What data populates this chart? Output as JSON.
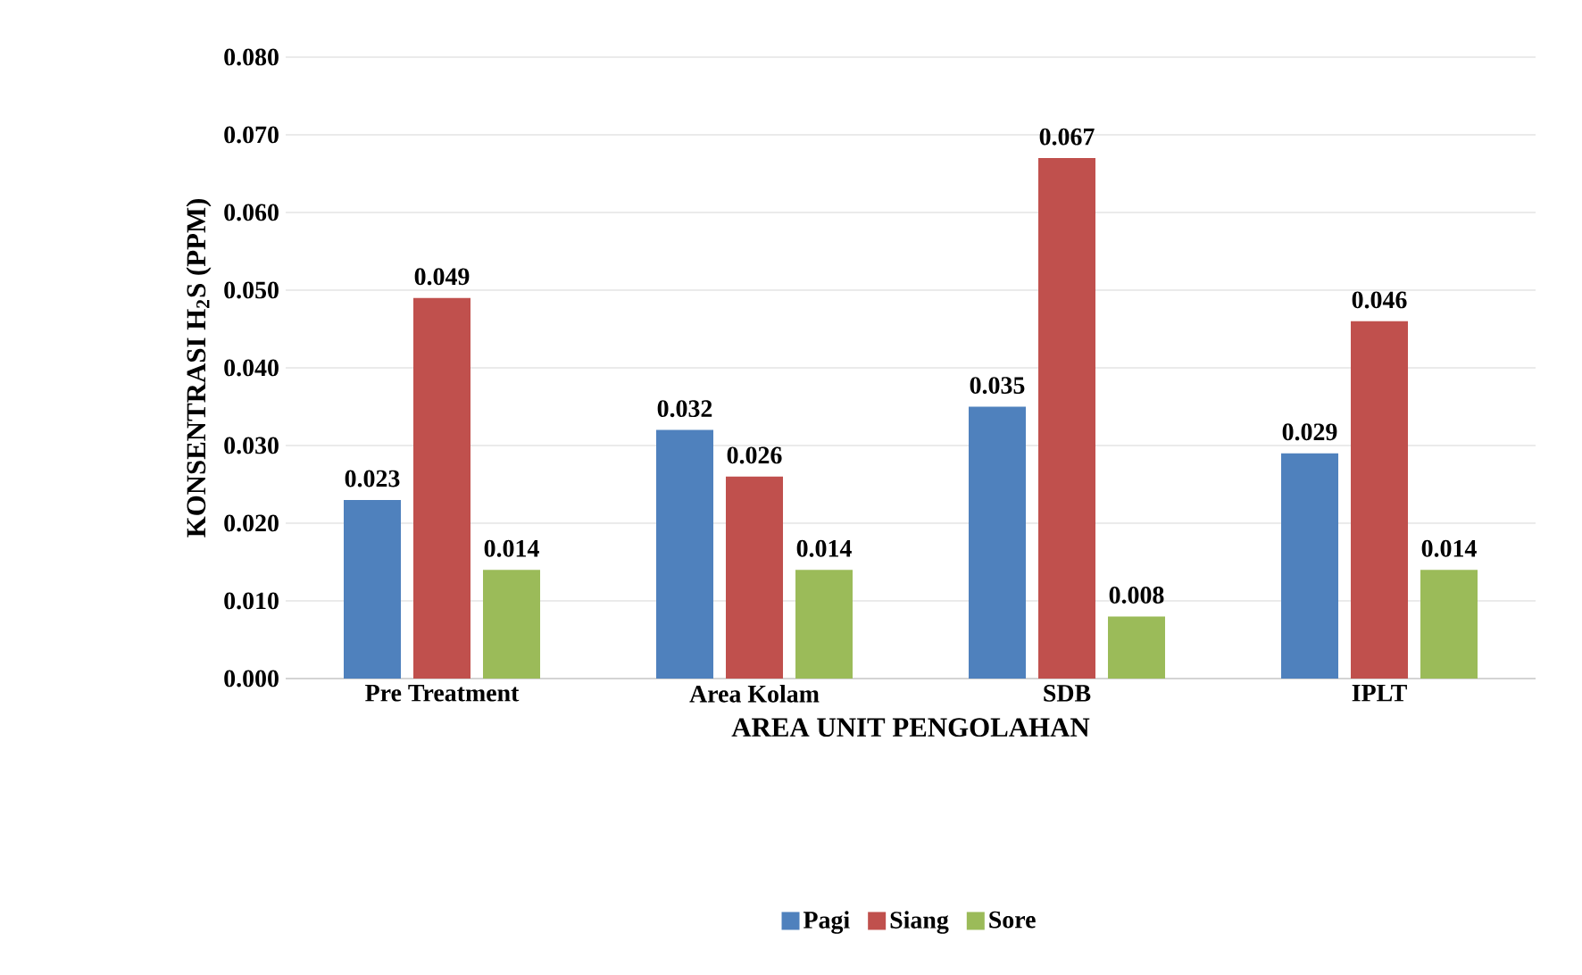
{
  "chart_data": {
    "type": "bar",
    "xlabel": "AREA UNIT PENGOLAHAN",
    "ylabel": "KONSENTRASI  H$_{2}$S (PPM)",
    "categories": [
      "Pre Treatment",
      "Area Kolam",
      "SDB",
      "IPLT"
    ],
    "series": [
      {
        "name": "Pagi",
        "color": "#4f81bd",
        "values": [
          0.023,
          0.032,
          0.035,
          0.029
        ]
      },
      {
        "name": "Siang",
        "color": "#c0504d",
        "values": [
          0.049,
          0.026,
          0.067,
          0.046
        ]
      },
      {
        "name": "Sore",
        "color": "#9bbb59",
        "values": [
          0.014,
          0.014,
          0.008,
          0.014
        ]
      }
    ],
    "ylim": [
      0,
      0.08
    ],
    "yticks": [
      {
        "value": 0,
        "label": "0.000"
      },
      {
        "value": 0.01,
        "label": "0.010"
      },
      {
        "value": 0.02,
        "label": "0.020"
      },
      {
        "value": 0.03,
        "label": "0.030"
      },
      {
        "value": 0.04,
        "label": "0.040"
      },
      {
        "value": 0.05,
        "label": "0.050"
      },
      {
        "value": 0.06,
        "label": "0.060"
      },
      {
        "value": 0.07,
        "label": "0.070"
      },
      {
        "value": 0.08,
        "label": "0.080"
      }
    ],
    "grid": "y",
    "legend": "bottom",
    "data_labels": true
  }
}
